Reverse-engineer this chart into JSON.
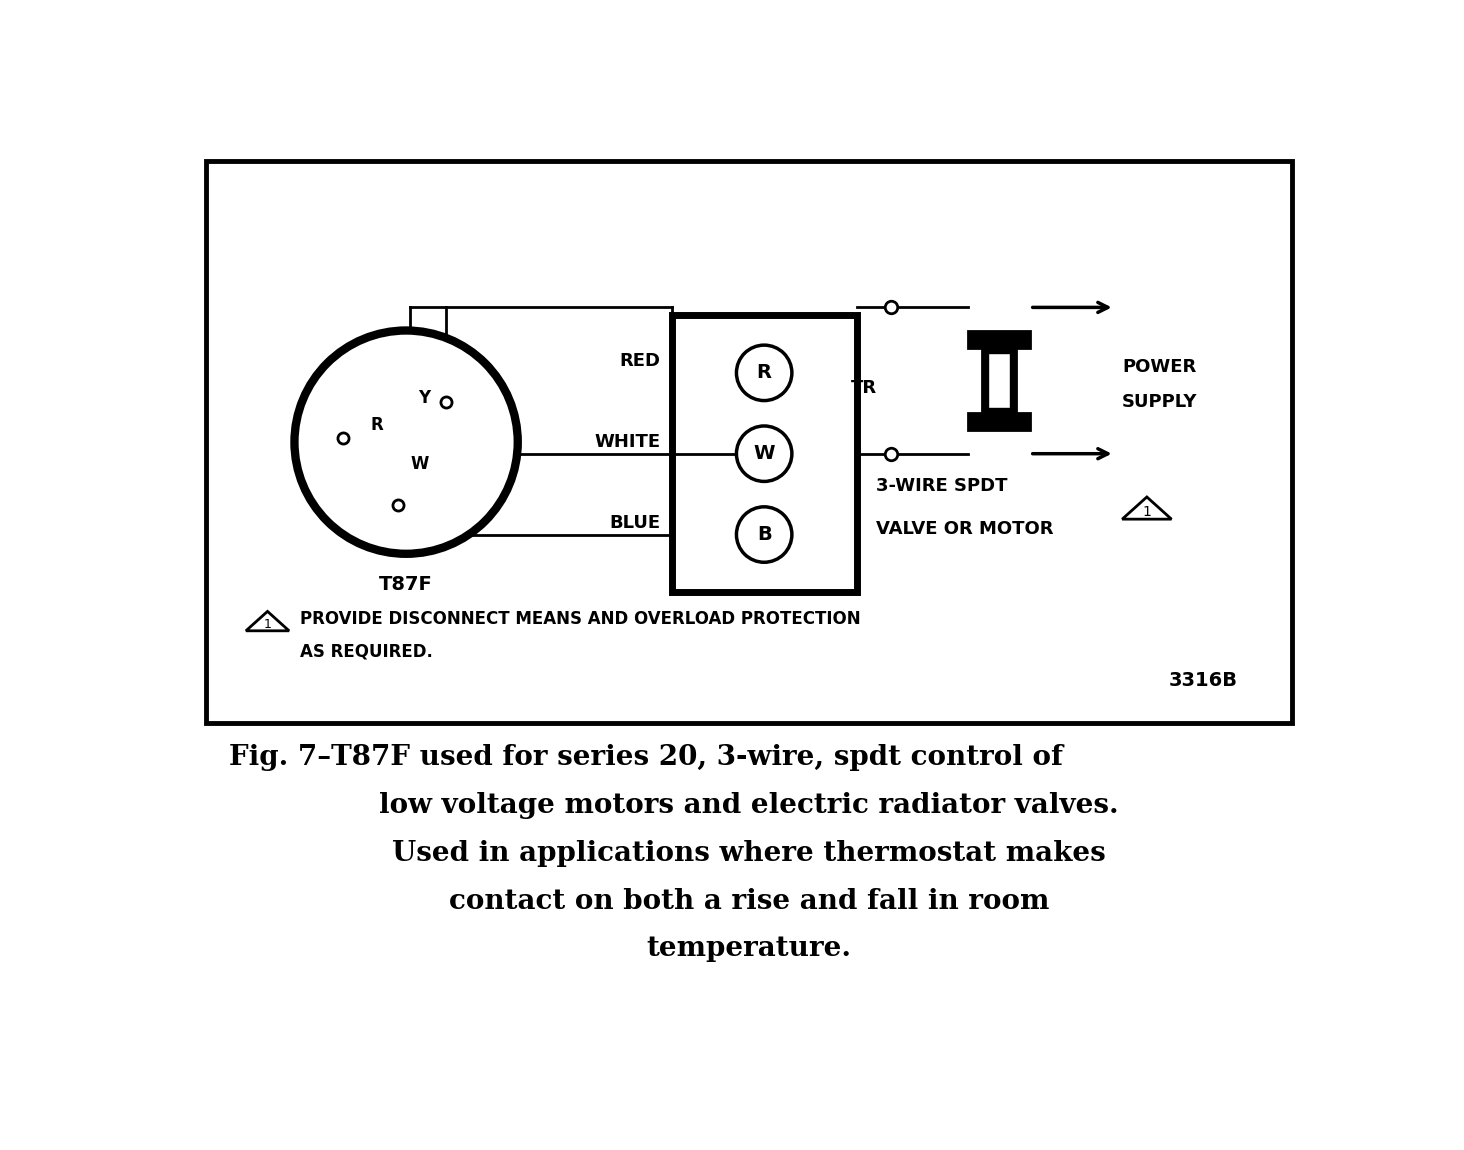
{
  "bg_color": "#ffffff",
  "line_color": "#000000",
  "title_line1": "Fig. 7–T87F used for series 20, 3-wire, spdt control of",
  "title_line2": "low voltage motors and electric radiator valves.",
  "title_line3": "Used in applications where thermostat makes",
  "title_line4": "contact on both a rise and fall in room",
  "title_line5": "temperature.",
  "thermostat_label": "T87F",
  "wire_labels": [
    "RED",
    "WHITE",
    "BLUE"
  ],
  "box_terminal_labels": [
    "R",
    "W",
    "B"
  ],
  "tr_label": "TR",
  "power_supply_label": "POWER\nSUPPLY",
  "valve_label": "3-WIRE SPDT\nVALVE OR MOTOR",
  "reference_number": "3316B",
  "warning_text1": "PROVIDE DISCONNECT MEANS AND OVERLOAD PROTECTION",
  "warning_text2": "AS REQUIRED."
}
